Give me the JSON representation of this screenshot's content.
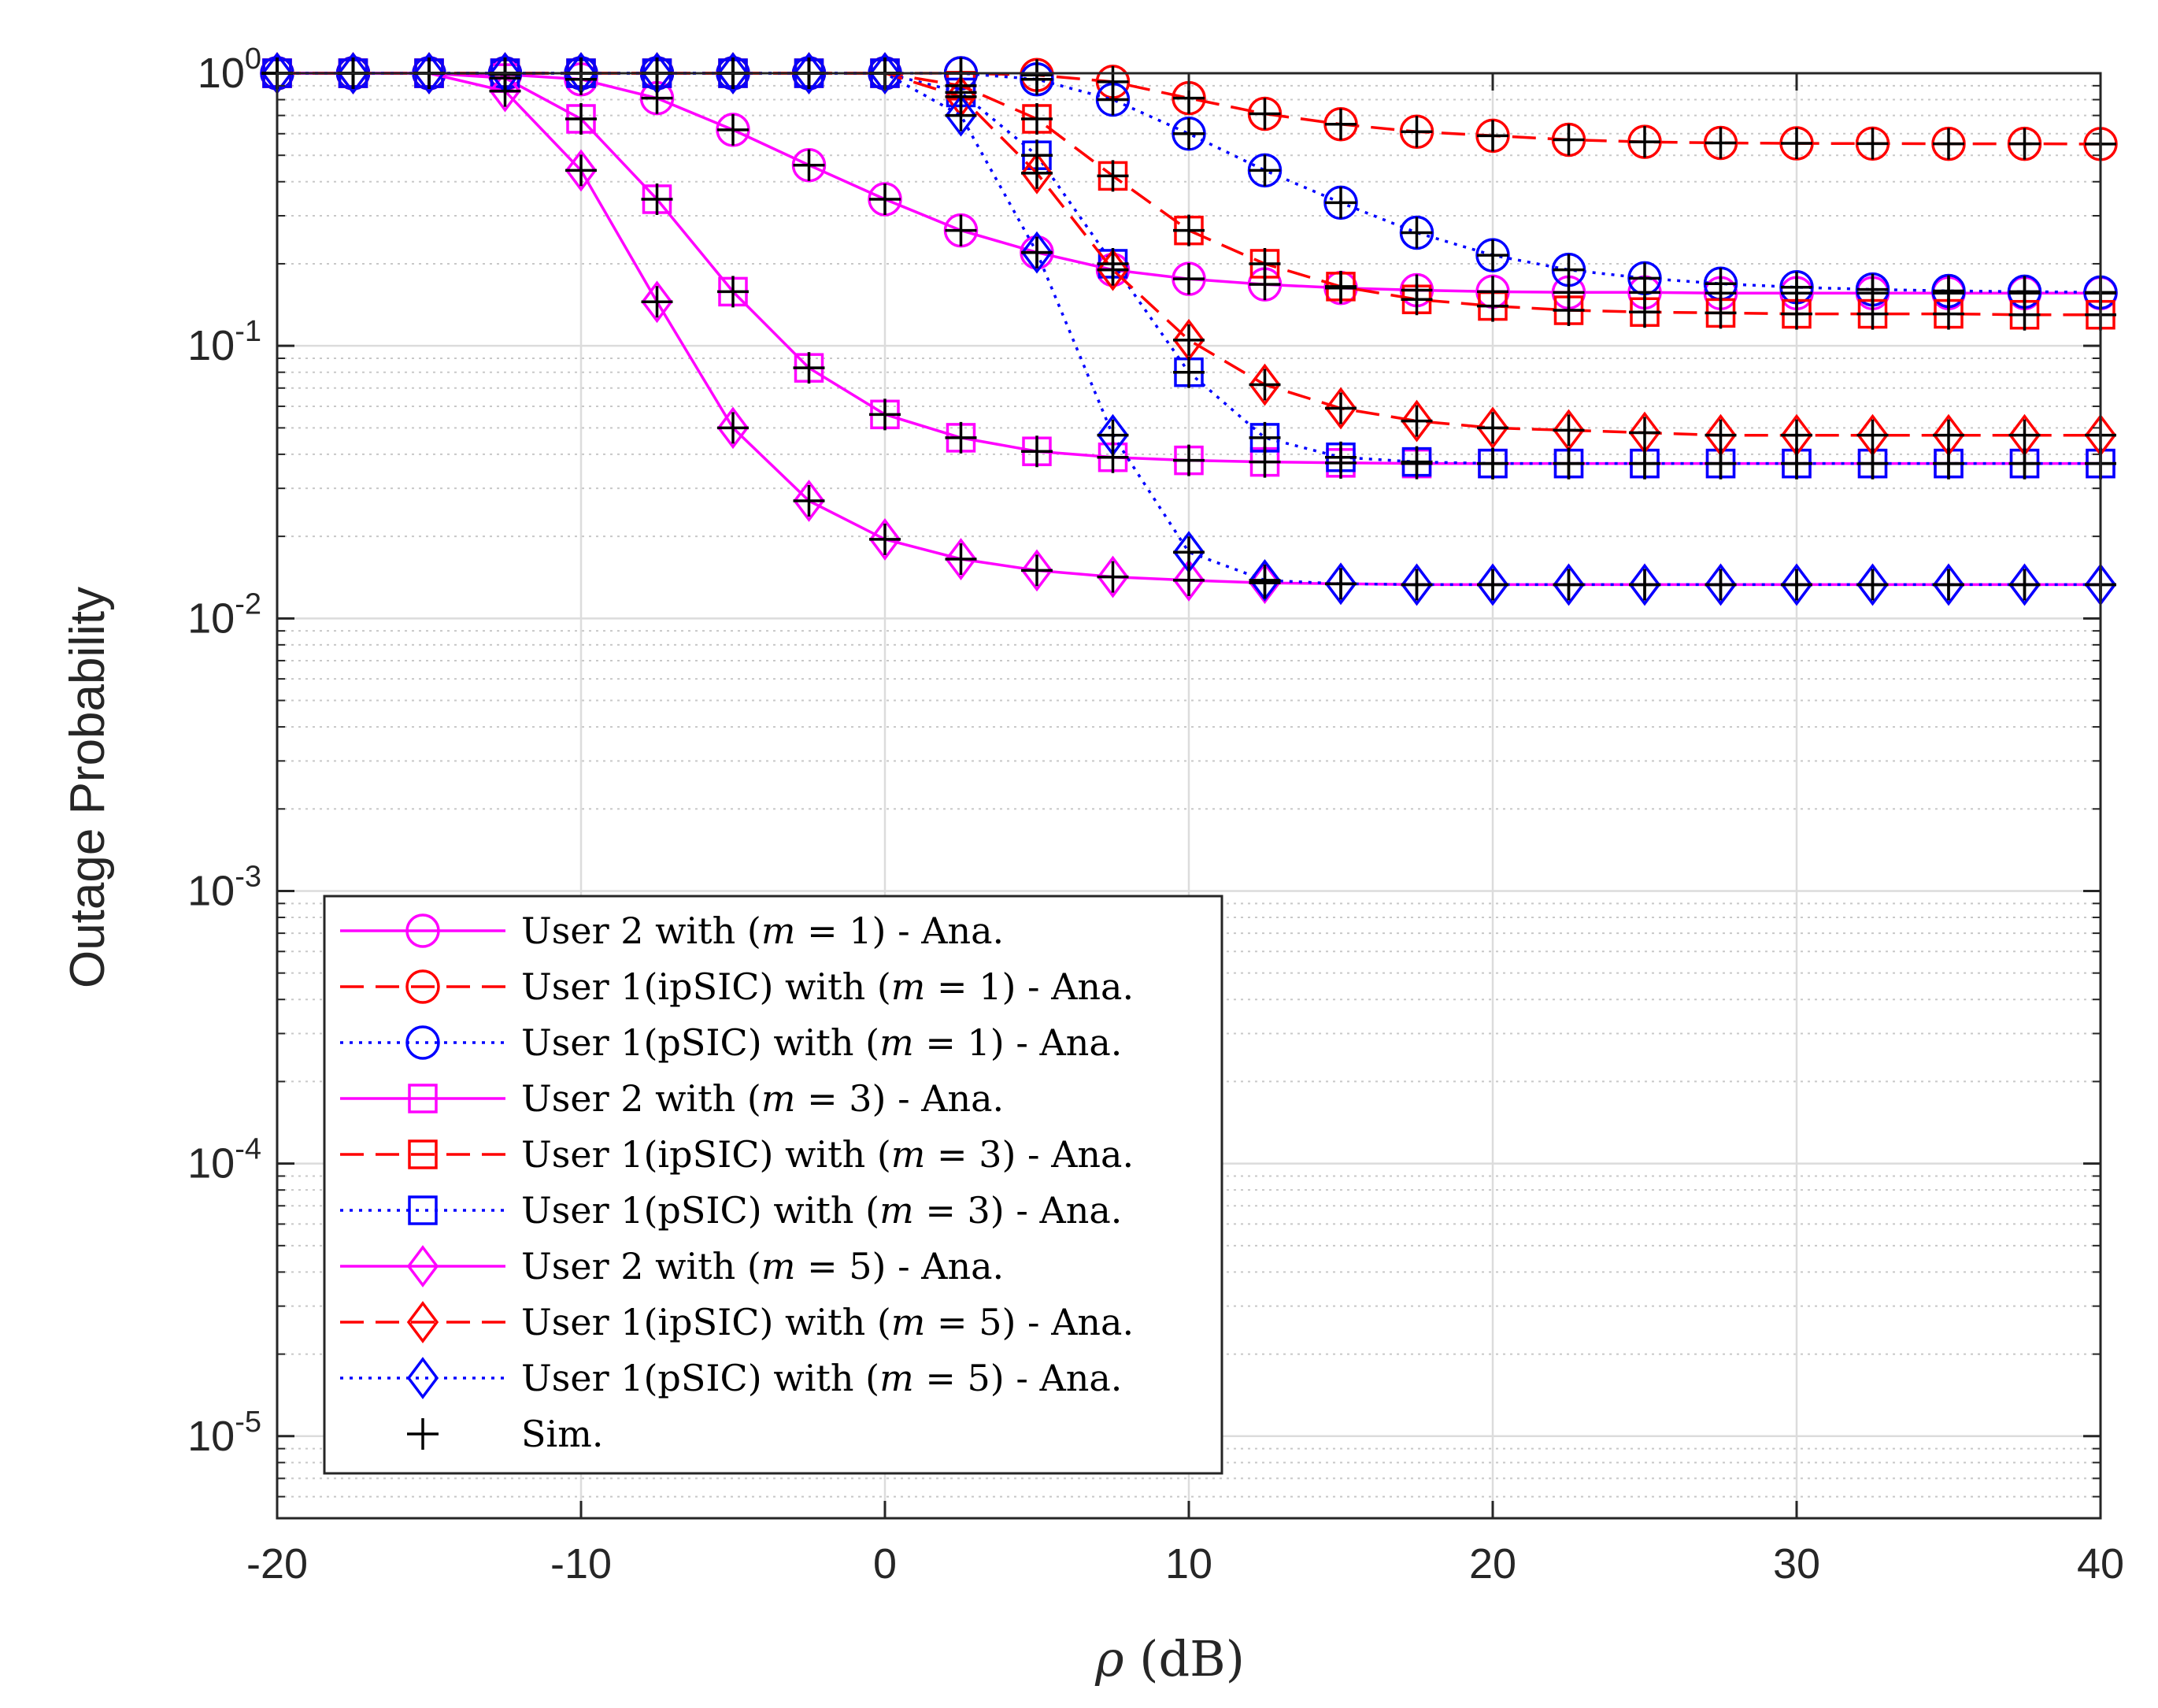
{
  "chart_data": {
    "type": "line",
    "title": "",
    "xlabel": "ρ (dB)",
    "ylabel": "Outage Probability",
    "xlim": [
      -20,
      40
    ],
    "ylim": [
      5e-06,
      1
    ],
    "yscale": "log",
    "grid": true,
    "minor_grid": true,
    "legend_position": "bottom-left",
    "x_ticks": [
      "-20",
      "-10",
      "0",
      "10",
      "20",
      "30",
      "40"
    ],
    "y_ticks": [
      {
        "base": "10",
        "exp": "0",
        "value": 1
      },
      {
        "base": "10",
        "exp": "-1",
        "value": 0.1
      },
      {
        "base": "10",
        "exp": "-2",
        "value": 0.01
      },
      {
        "base": "10",
        "exp": "-3",
        "value": 0.001
      },
      {
        "base": "10",
        "exp": "-4",
        "value": 0.0001
      },
      {
        "base": "10",
        "exp": "-5",
        "value": 1e-05
      }
    ],
    "x": [
      -20,
      -17.5,
      -15,
      -12.5,
      -10,
      -7.5,
      -5,
      -2.5,
      0,
      2.5,
      5,
      7.5,
      10,
      12.5,
      15,
      17.5,
      20,
      22.5,
      25,
      27.5,
      30,
      32.5,
      35,
      37.5,
      40
    ],
    "series": [
      {
        "name": "User 2 with (m = 1) - Ana.",
        "color": "#ff00ff",
        "dash": "solid",
        "marker": "circle",
        "values": [
          1,
          1,
          1,
          0.99,
          0.95,
          0.81,
          0.62,
          0.46,
          0.345,
          0.265,
          0.22,
          0.19,
          0.176,
          0.168,
          0.163,
          0.16,
          0.158,
          0.157,
          0.157,
          0.156,
          0.156,
          0.156,
          0.156,
          0.156,
          0.156
        ]
      },
      {
        "name": "User 1(ipSIC) with (m = 1) - Ana.",
        "color": "#ff0000",
        "dash": "dashed",
        "marker": "circle",
        "values": [
          1,
          1,
          1,
          1,
          1,
          1,
          1,
          1,
          1,
          1,
          0.985,
          0.93,
          0.81,
          0.71,
          0.65,
          0.61,
          0.59,
          0.57,
          0.56,
          0.555,
          0.553,
          0.552,
          0.551,
          0.551,
          0.55
        ]
      },
      {
        "name": "User 1(pSIC) with (m = 1) - Ana.",
        "color": "#0000ff",
        "dash": "dotted",
        "marker": "circle",
        "values": [
          1,
          1,
          1,
          1,
          1,
          1,
          1,
          1,
          1,
          1,
          0.95,
          0.8,
          0.6,
          0.44,
          0.335,
          0.26,
          0.215,
          0.19,
          0.177,
          0.169,
          0.164,
          0.161,
          0.159,
          0.158,
          0.157
        ]
      },
      {
        "name": "User 2 with (m = 3) - Ana.",
        "color": "#ff00ff",
        "dash": "solid",
        "marker": "square",
        "values": [
          1,
          1,
          1,
          0.96,
          0.68,
          0.345,
          0.158,
          0.083,
          0.056,
          0.046,
          0.041,
          0.039,
          0.038,
          0.0375,
          0.0372,
          0.037,
          0.037,
          0.037,
          0.037,
          0.037,
          0.037,
          0.037,
          0.037,
          0.037,
          0.037
        ]
      },
      {
        "name": "User 1(ipSIC) with (m = 3) - Ana.",
        "color": "#ff0000",
        "dash": "dashed",
        "marker": "square",
        "values": [
          1,
          1,
          1,
          1,
          1,
          1,
          1,
          1,
          1,
          0.9,
          0.68,
          0.42,
          0.265,
          0.2,
          0.165,
          0.148,
          0.14,
          0.135,
          0.133,
          0.132,
          0.131,
          0.131,
          0.131,
          0.13,
          0.13
        ]
      },
      {
        "name": "User 1(pSIC) with (m = 3) - Ana.",
        "color": "#0000ff",
        "dash": "dotted",
        "marker": "square",
        "values": [
          1,
          1,
          1,
          1,
          1,
          1,
          1,
          1,
          1,
          0.85,
          0.5,
          0.2,
          0.08,
          0.046,
          0.039,
          0.0375,
          0.037,
          0.037,
          0.037,
          0.037,
          0.037,
          0.037,
          0.037,
          0.037,
          0.037
        ]
      },
      {
        "name": "User 2 with (m = 5) - Ana.",
        "color": "#ff00ff",
        "dash": "solid",
        "marker": "diamond",
        "values": [
          1,
          1,
          1,
          0.86,
          0.44,
          0.145,
          0.05,
          0.027,
          0.0195,
          0.0165,
          0.015,
          0.0142,
          0.0138,
          0.0135,
          0.0134,
          0.0133,
          0.0133,
          0.0133,
          0.0133,
          0.0133,
          0.0133,
          0.0133,
          0.0133,
          0.0133,
          0.0133
        ]
      },
      {
        "name": "User 1(ipSIC) with (m = 5) - Ana.",
        "color": "#ff0000",
        "dash": "dashed",
        "marker": "diamond",
        "values": [
          1,
          1,
          1,
          1,
          1,
          1,
          1,
          1,
          1,
          0.82,
          0.43,
          0.19,
          0.105,
          0.072,
          0.059,
          0.053,
          0.05,
          0.049,
          0.048,
          0.047,
          0.047,
          0.047,
          0.047,
          0.047,
          0.047
        ]
      },
      {
        "name": "User 1(pSIC) with (m = 5) - Ana.",
        "color": "#0000ff",
        "dash": "dotted",
        "marker": "diamond",
        "values": [
          1,
          1,
          1,
          1,
          1,
          1,
          1,
          1,
          1,
          0.7,
          0.22,
          0.047,
          0.0175,
          0.0138,
          0.0134,
          0.0133,
          0.0133,
          0.0133,
          0.0133,
          0.0133,
          0.0133,
          0.0133,
          0.0133,
          0.0133,
          0.0133
        ]
      }
    ],
    "sim_marker": {
      "name": "Sim.",
      "color": "#000000",
      "marker": "plus"
    },
    "legend": [
      {
        "prefix": "User 2 with (",
        "m": "m",
        "eq": " = 1) - Ana."
      },
      {
        "prefix": "User 1(ipSIC) with (",
        "m": "m",
        "eq": " = 1) - Ana."
      },
      {
        "prefix": "User 1(pSIC) with (",
        "m": "m",
        "eq": " = 1) - Ana."
      },
      {
        "prefix": "User 2 with (",
        "m": "m",
        "eq": " = 3) - Ana."
      },
      {
        "prefix": "User 1(ipSIC) with (",
        "m": "m",
        "eq": " = 3) - Ana."
      },
      {
        "prefix": "User 1(pSIC) with (",
        "m": "m",
        "eq": " = 3) - Ana."
      },
      {
        "prefix": "User 2 with (",
        "m": "m",
        "eq": " = 5) - Ana."
      },
      {
        "prefix": "User 1(ipSIC) with (",
        "m": "m",
        "eq": " = 5) - Ana."
      },
      {
        "prefix": "User 1(pSIC) with (",
        "m": "m",
        "eq": " = 5) - Ana."
      },
      {
        "prefix": "Sim.",
        "m": "",
        "eq": ""
      }
    ]
  }
}
